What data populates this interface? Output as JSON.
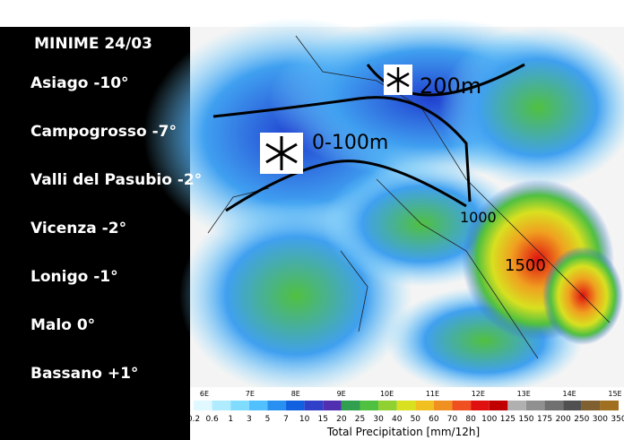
{
  "panel": {
    "title": "MINIME 24/03",
    "stations": [
      "Asiago -10°",
      "Campogrosso -7°",
      "Valli del Pasubio -2°",
      "Vicenza -2°",
      "Lonigo -1°",
      "Malo 0°",
      "Bassano +1°"
    ]
  },
  "map": {
    "annotations": [
      "200m",
      "0-100m",
      "1000",
      "1500"
    ],
    "longitudes": [
      "6E",
      "7E",
      "8E",
      "9E",
      "10E",
      "11E",
      "12E",
      "13E",
      "14E",
      "15E"
    ],
    "legend": {
      "labels": [
        "0.2",
        "0.6",
        "1",
        "3",
        "5",
        "7",
        "10",
        "15",
        "20",
        "25",
        "30",
        "40",
        "50",
        "60",
        "70",
        "80",
        "100",
        "125",
        "150",
        "175",
        "200",
        "250",
        "300",
        "350"
      ],
      "caption": "Total Precipitation [mm/12h]"
    }
  }
}
